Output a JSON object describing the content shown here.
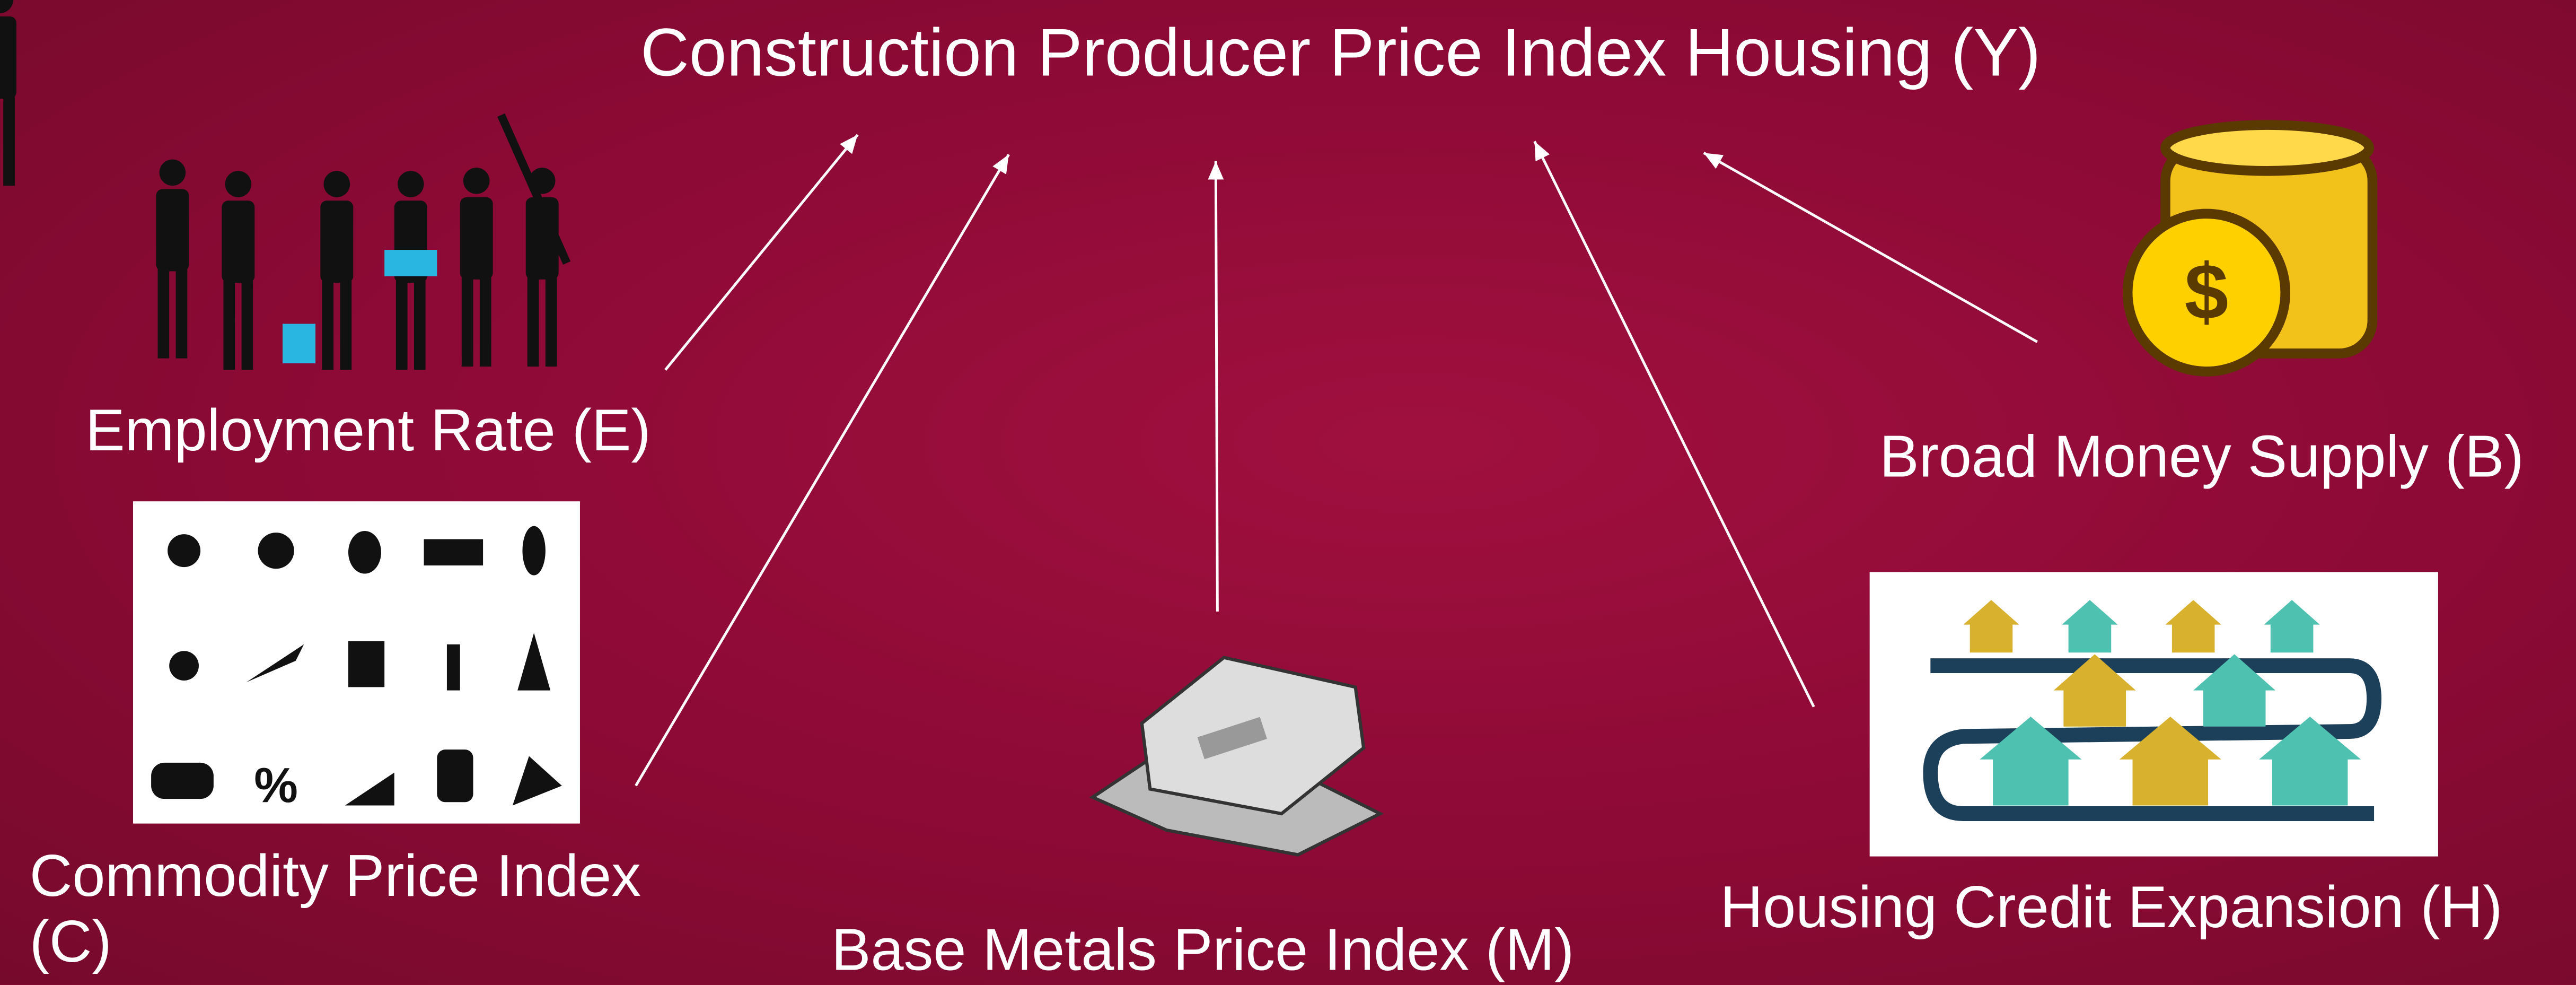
{
  "title": "Construction Producer Price Index Housing (Y)",
  "nodes": [
    {
      "label": "Employment Rate (E)"
    },
    {
      "label": "Commodity Price Index (C)"
    },
    {
      "label": "Base Metals Price Index (M)"
    },
    {
      "label": "Housing Credit Expansion (H)"
    },
    {
      "label": "Broad Money Supply (B)"
    }
  ]
}
